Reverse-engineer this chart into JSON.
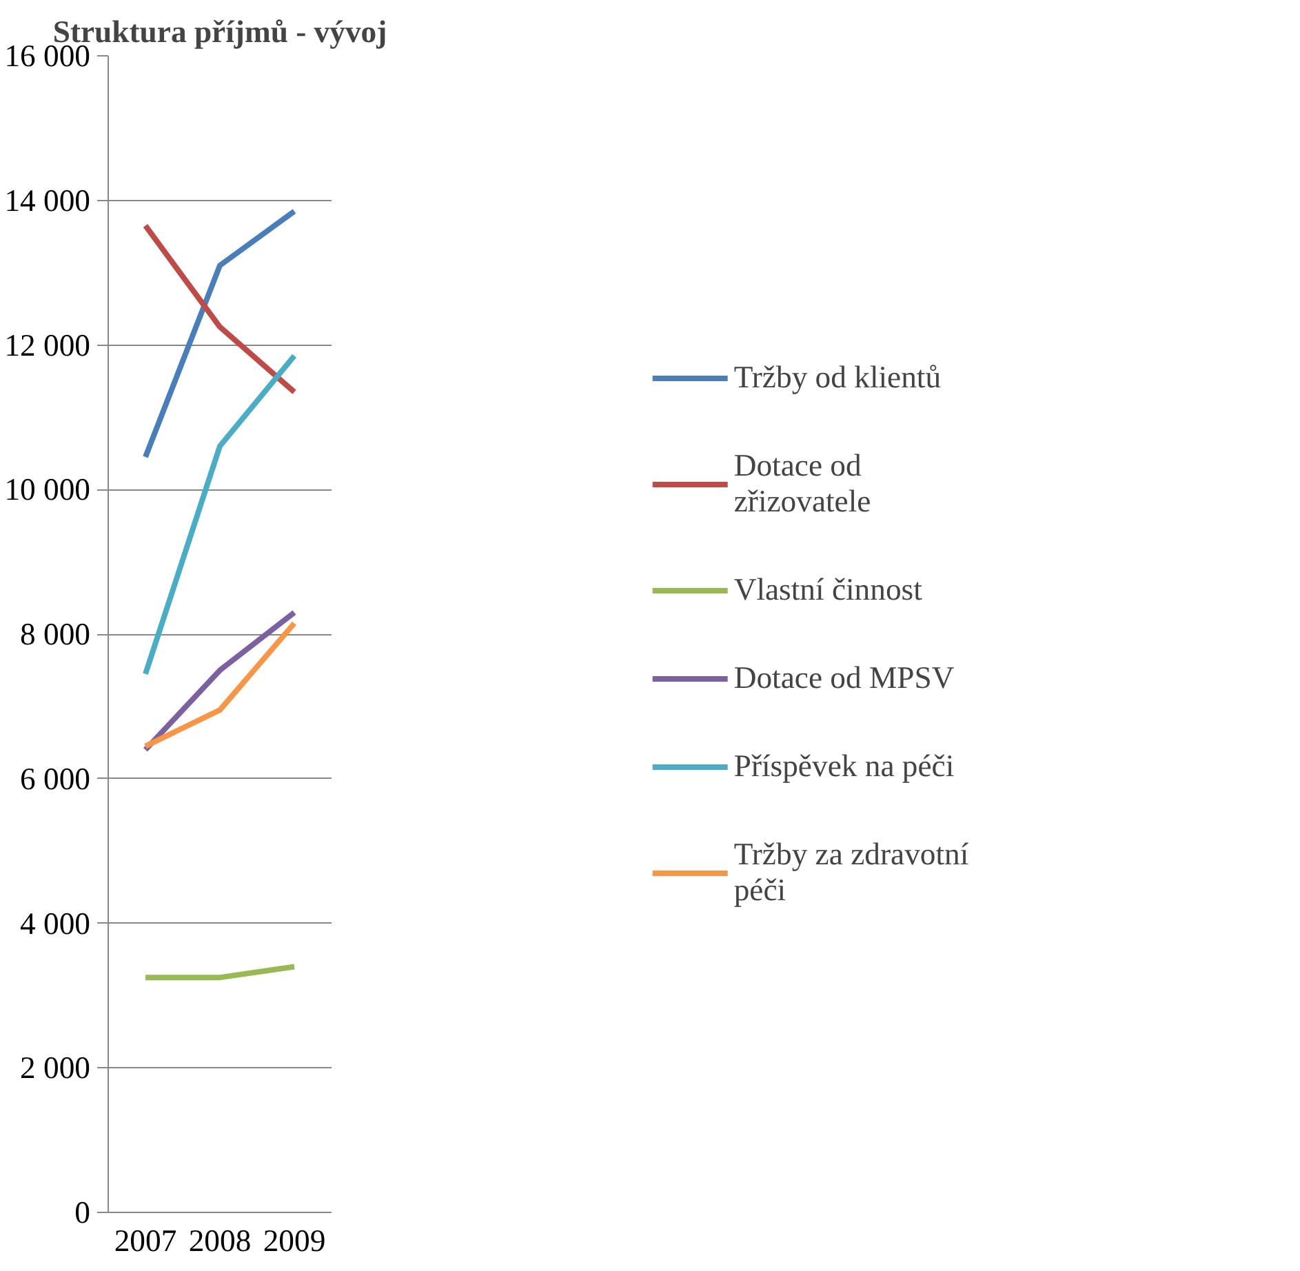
{
  "chart_data": {
    "type": "line",
    "title": "Struktura příjmů - vývoj",
    "categories": [
      "2007",
      "2008",
      "2009"
    ],
    "series": [
      {
        "name": "Tržby od klientů",
        "color": "#4a7ebb",
        "values": [
          10450,
          13100,
          13850
        ]
      },
      {
        "name": "Dotace od zřizovatele",
        "color": "#be4b48",
        "values": [
          13650,
          12250,
          11350
        ]
      },
      {
        "name": "Vlastní činnost",
        "color": "#98b954",
        "values": [
          3250,
          3250,
          3400
        ]
      },
      {
        "name": "Dotace od MPSV",
        "color": "#7d60a0",
        "values": [
          6400,
          7500,
          8300
        ]
      },
      {
        "name": "Příspěvek na péči",
        "color": "#4bacc6",
        "values": [
          7450,
          10600,
          11850
        ]
      },
      {
        "name": "Tržby za zdravotní péči",
        "color": "#f79646",
        "values": [
          6450,
          6950,
          8150
        ]
      }
    ],
    "ylim": [
      0,
      16000
    ],
    "yticks": [
      0,
      {
        "value": 2000,
        "label": "2 000"
      },
      {
        "value": 4000,
        "label": "4 000"
      },
      {
        "value": 6000,
        "label": "6 000"
      },
      {
        "value": 8000,
        "label": "8 000"
      },
      {
        "value": 10000,
        "label": "10 000"
      },
      {
        "value": 12000,
        "label": "12 000"
      },
      {
        "value": 14000,
        "label": "14 000"
      },
      {
        "value": 16000,
        "label": "16 000"
      }
    ],
    "grid": "y",
    "legend": "right",
    "marker": "none",
    "line_style": "solid"
  }
}
